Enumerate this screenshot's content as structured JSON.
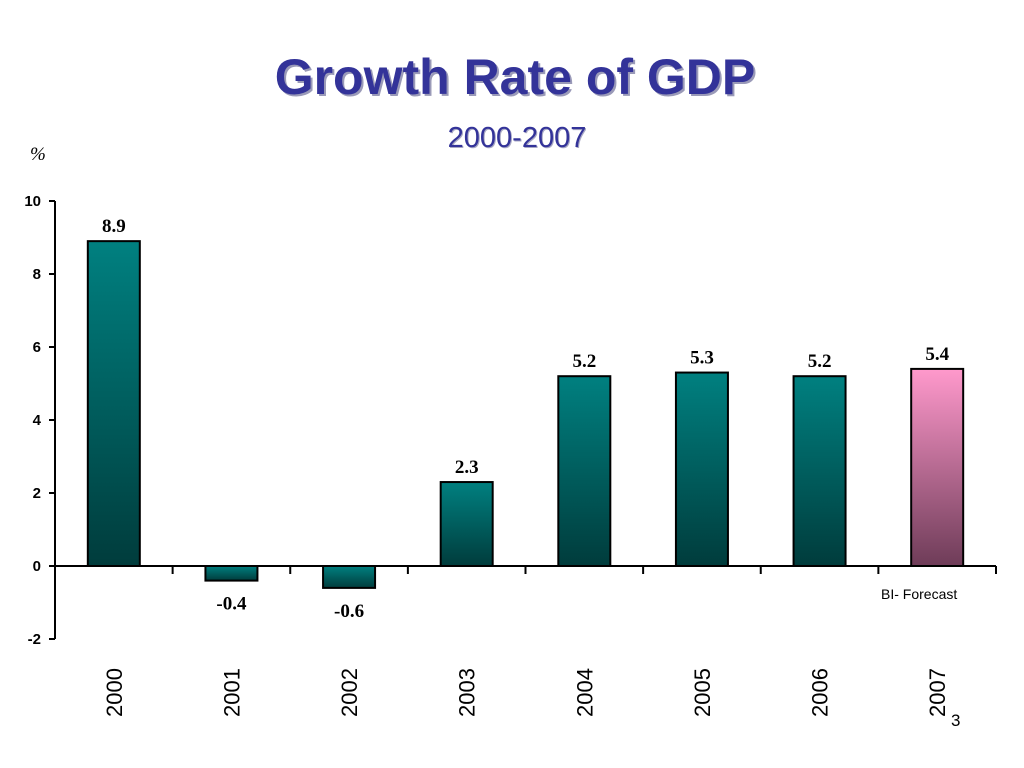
{
  "slide": {
    "title": "Growth Rate of GDP",
    "subtitle": "2000-2007",
    "unit": "%",
    "footnote": "BI- Forecast",
    "page_number": "3"
  },
  "colors": {
    "title": "#333399",
    "bar_top": "#008080",
    "bar_bottom": "#003c3c",
    "forecast_top": "#ff99cc",
    "forecast_bottom": "#6e3c58"
  },
  "chart_data": {
    "type": "bar",
    "categories": [
      "2000",
      "2001",
      "2002",
      "2003",
      "2004",
      "2005",
      "2006",
      "2007"
    ],
    "values": [
      8.9,
      -0.4,
      -0.6,
      2.3,
      5.2,
      5.3,
      5.2,
      5.4
    ],
    "data_labels": [
      "8.9",
      "-0.4",
      "-0.6",
      "2.3",
      "5.2",
      "5.3",
      "5.2",
      "5.4"
    ],
    "forecast": [
      false,
      false,
      false,
      false,
      false,
      false,
      false,
      true
    ],
    "title": "Growth Rate of GDP",
    "subtitle": "2000-2007",
    "ylabel": "%",
    "ylim": [
      -2,
      10
    ],
    "yticks": [
      10,
      8,
      6,
      4,
      2,
      0,
      -2
    ],
    "xlabel_rotation": "vertical",
    "grid": false,
    "legend": "none"
  }
}
